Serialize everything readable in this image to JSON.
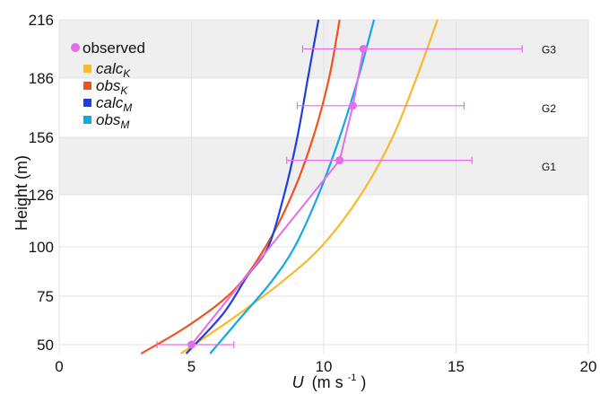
{
  "chart_data": {
    "type": "line",
    "xlabel_symbol": "U",
    "xlabel_units": "(m s",
    "xlabel_exponent": "-1",
    "xlabel_close": ")",
    "ylabel": "Height (m)",
    "xlim": [
      0,
      20
    ],
    "xticks": [
      0,
      5,
      10,
      15,
      20
    ],
    "yticks": [
      50,
      75,
      100,
      126,
      156,
      186,
      216
    ],
    "ylim": [
      46,
      216
    ],
    "grid": true,
    "bands": [
      {
        "label": "G1",
        "ymin": 126,
        "ymax": 156,
        "shaded": true
      },
      {
        "label": "G2",
        "ymin": 156,
        "ymax": 186,
        "shaded": false
      },
      {
        "label": "G3",
        "ymin": 186,
        "ymax": 216,
        "shaded": true
      }
    ],
    "observed": {
      "name": "observed",
      "color": "#e46ee8",
      "points": [
        {
          "y": 50,
          "x": 5.0,
          "xerr_low": 3.7,
          "xerr_high": 6.6
        },
        {
          "y": 144,
          "x": 10.6,
          "xerr_low": 8.6,
          "xerr_high": 15.6
        },
        {
          "y": 172,
          "x": 11.1,
          "xerr_low": 9.0,
          "xerr_high": 15.3
        },
        {
          "y": 201,
          "x": 11.5,
          "xerr_low": 9.2,
          "xerr_high": 17.5
        }
      ]
    },
    "series": [
      {
        "name": "calc",
        "sub": "K",
        "color": "#fbb829",
        "points": [
          [
            4.6,
            46
          ],
          [
            6.5,
            63
          ],
          [
            8.3,
            81
          ],
          [
            9.9,
            100
          ],
          [
            11.4,
            126
          ],
          [
            12.6,
            156
          ],
          [
            13.5,
            186
          ],
          [
            14.3,
            216
          ]
        ]
      },
      {
        "name": "obs",
        "sub": "K",
        "color": "#f1521e",
        "points": [
          [
            3.1,
            46
          ],
          [
            4.9,
            60
          ],
          [
            6.6,
            78
          ],
          [
            7.8,
            100
          ],
          [
            8.8,
            126
          ],
          [
            9.6,
            156
          ],
          [
            10.2,
            186
          ],
          [
            10.6,
            216
          ]
        ]
      },
      {
        "name": "calc",
        "sub": "M",
        "color": "#1d3fe0",
        "points": [
          [
            4.8,
            46
          ],
          [
            6.2,
            66
          ],
          [
            7.1,
            85
          ],
          [
            7.9,
            100
          ],
          [
            8.5,
            126
          ],
          [
            9.0,
            156
          ],
          [
            9.4,
            186
          ],
          [
            9.8,
            216
          ]
        ]
      },
      {
        "name": "obs",
        "sub": "M",
        "color": "#12a8e6",
        "points": [
          [
            5.7,
            46
          ],
          [
            6.8,
            63
          ],
          [
            8.0,
            82
          ],
          [
            8.9,
            100
          ],
          [
            9.8,
            126
          ],
          [
            10.6,
            156
          ],
          [
            11.3,
            186
          ],
          [
            11.9,
            216
          ]
        ]
      }
    ]
  }
}
